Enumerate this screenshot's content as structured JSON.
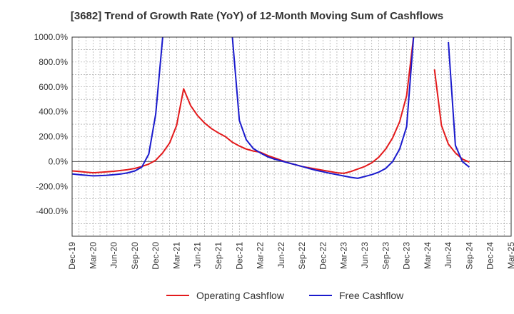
{
  "chart_data": {
    "type": "line",
    "title": "[3682]  Trend of Growth Rate (YoY) of 12-Month Moving Sum of Cashflows",
    "xlabel": "",
    "ylabel": "",
    "ylim": [
      -600,
      1000
    ],
    "y_ticks": [
      1000,
      800,
      600,
      400,
      200,
      0,
      -200,
      -400
    ],
    "y_tick_labels": [
      "1000.0%",
      "800.0%",
      "600.0%",
      "400.0%",
      "200.0%",
      "0.0%",
      "-200.0%",
      "-400.0%"
    ],
    "x_tick_labels": [
      "Dec-19",
      "Mar-20",
      "Jun-20",
      "Sep-20",
      "Dec-20",
      "Mar-21",
      "Jun-21",
      "Sep-21",
      "Dec-21",
      "Mar-22",
      "Jun-22",
      "Sep-22",
      "Dec-22",
      "Mar-23",
      "Jun-23",
      "Sep-23",
      "Dec-23",
      "Mar-24",
      "Jun-24",
      "Sep-24",
      "Dec-24",
      "Mar-25"
    ],
    "x_start": "Dec-19",
    "grid": true,
    "legend_position": "bottom",
    "series": [
      {
        "name": "Operating Cashflow",
        "color": "#e31a1c",
        "values": [
          -75,
          -80,
          -85,
          -90,
          -87,
          -83,
          -78,
          -72,
          -65,
          -55,
          -40,
          -20,
          10,
          70,
          150,
          290,
          585,
          450,
          370,
          310,
          265,
          230,
          200,
          155,
          125,
          100,
          85,
          75,
          50,
          30,
          10,
          -10,
          -25,
          -40,
          -50,
          -60,
          -70,
          -80,
          -90,
          -95,
          -80,
          -60,
          -40,
          -10,
          35,
          100,
          190,
          320,
          530,
          1000,
          null,
          null,
          740,
          290,
          140,
          70,
          20,
          -5
        ]
      },
      {
        "name": "Free Cashflow",
        "color": "#1a1acd",
        "values": [
          -100,
          -105,
          -110,
          -115,
          -113,
          -110,
          -105,
          -100,
          -90,
          -75,
          -45,
          60,
          380,
          1000,
          null,
          null,
          null,
          null,
          null,
          null,
          null,
          null,
          null,
          1000,
          330,
          175,
          105,
          70,
          40,
          20,
          5,
          -10,
          -25,
          -40,
          -55,
          -70,
          -82,
          -94,
          -105,
          -116,
          -127,
          -135,
          -120,
          -105,
          -85,
          -55,
          0,
          100,
          280,
          1000,
          null,
          null,
          null,
          null,
          960,
          130,
          0,
          -45
        ]
      }
    ]
  }
}
